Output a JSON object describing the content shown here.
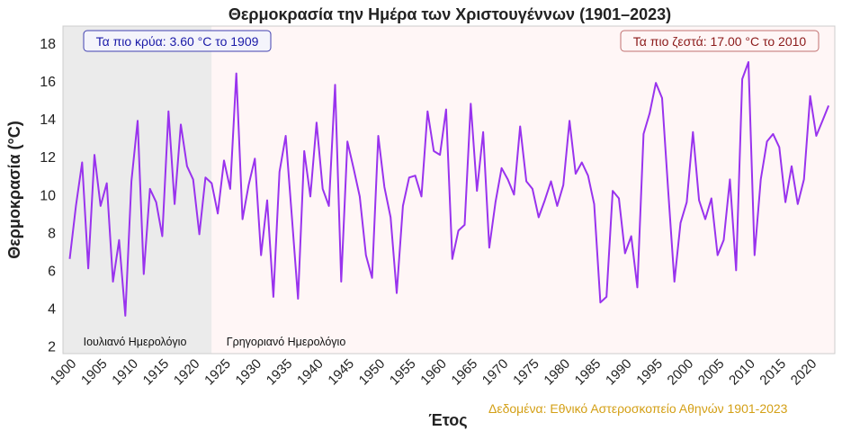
{
  "chart_data": {
    "type": "line",
    "title": "Θερμοκρασία την Ημέρα των Χριστουγέννων (1901–2023)",
    "xlabel": "Έτος",
    "ylabel": "Θερμοκρασία (°C)",
    "xlim": [
      1898.9,
      2024.0
    ],
    "ylim": [
      1.6,
      18.9
    ],
    "xticks": [
      1900,
      1905,
      1910,
      1915,
      1920,
      1925,
      1930,
      1935,
      1940,
      1945,
      1950,
      1955,
      1960,
      1965,
      1970,
      1975,
      1980,
      1985,
      1990,
      1995,
      2000,
      2005,
      2010,
      2015,
      2020
    ],
    "yticks": [
      2,
      4,
      6,
      8,
      10,
      12,
      14,
      16,
      18
    ],
    "grid": false,
    "line_color": "#9933ee",
    "x_start": 1900,
    "values": [
      6.6,
      9.4,
      11.7,
      6.1,
      12.1,
      9.4,
      10.6,
      5.4,
      7.6,
      3.6,
      10.7,
      13.9,
      5.8,
      10.3,
      9.6,
      7.8,
      14.4,
      9.5,
      13.7,
      11.5,
      10.8,
      7.9,
      10.9,
      10.6,
      9.0,
      11.8,
      10.3,
      16.4,
      8.7,
      10.5,
      11.9,
      6.8,
      9.7,
      4.6,
      11.2,
      13.1,
      8.8,
      4.5,
      12.3,
      9.9,
      13.8,
      10.3,
      9.4,
      15.8,
      5.4,
      12.8,
      11.4,
      9.9,
      6.8,
      5.6,
      13.1,
      10.4,
      8.8,
      4.8,
      9.4,
      10.9,
      11.0,
      9.9,
      14.4,
      12.3,
      12.1,
      14.5,
      6.6,
      8.1,
      8.4,
      14.8,
      10.2,
      13.3,
      7.2,
      9.6,
      11.4,
      10.8,
      10.0,
      13.6,
      10.7,
      10.3,
      8.8,
      9.7,
      10.7,
      9.4,
      10.5,
      13.9,
      11.1,
      11.7,
      11.0,
      9.5,
      4.3,
      4.6,
      10.2,
      9.8,
      6.9,
      7.8,
      5.1,
      13.2,
      14.3,
      15.9,
      15.1,
      10.2,
      5.4,
      8.5,
      9.6,
      13.3,
      9.7,
      8.7,
      9.8,
      6.8,
      7.6,
      10.8,
      6.0,
      16.1,
      17.0,
      6.8,
      10.8,
      12.8,
      13.2,
      12.5,
      9.6,
      11.5,
      9.5,
      10.8,
      15.2,
      13.1,
      13.9,
      14.7
    ],
    "regions": [
      {
        "label": "Ιουλιανό Ημερολόγιο",
        "from": 1898.9,
        "to": 1923,
        "color": "#ebebeb"
      },
      {
        "label": "Γρηγοριανό Ημερολόγιο",
        "from": 1923,
        "to": 2024.0,
        "color": "#fff6f6"
      }
    ],
    "annotations": {
      "coldest": {
        "text": "Τα πιο κρύα: 3.60 °C το 1909",
        "color": "#1a1aa8"
      },
      "warmest": {
        "text": "Τα πιο ζεστά: 17.00 °C το 2010",
        "color": "#8b1a1a"
      }
    },
    "source": {
      "text": "Δεδομένα: Εθνικό Αστεροσκοπείο Αθηνών 1901-2023",
      "color": "#d4a017"
    }
  }
}
